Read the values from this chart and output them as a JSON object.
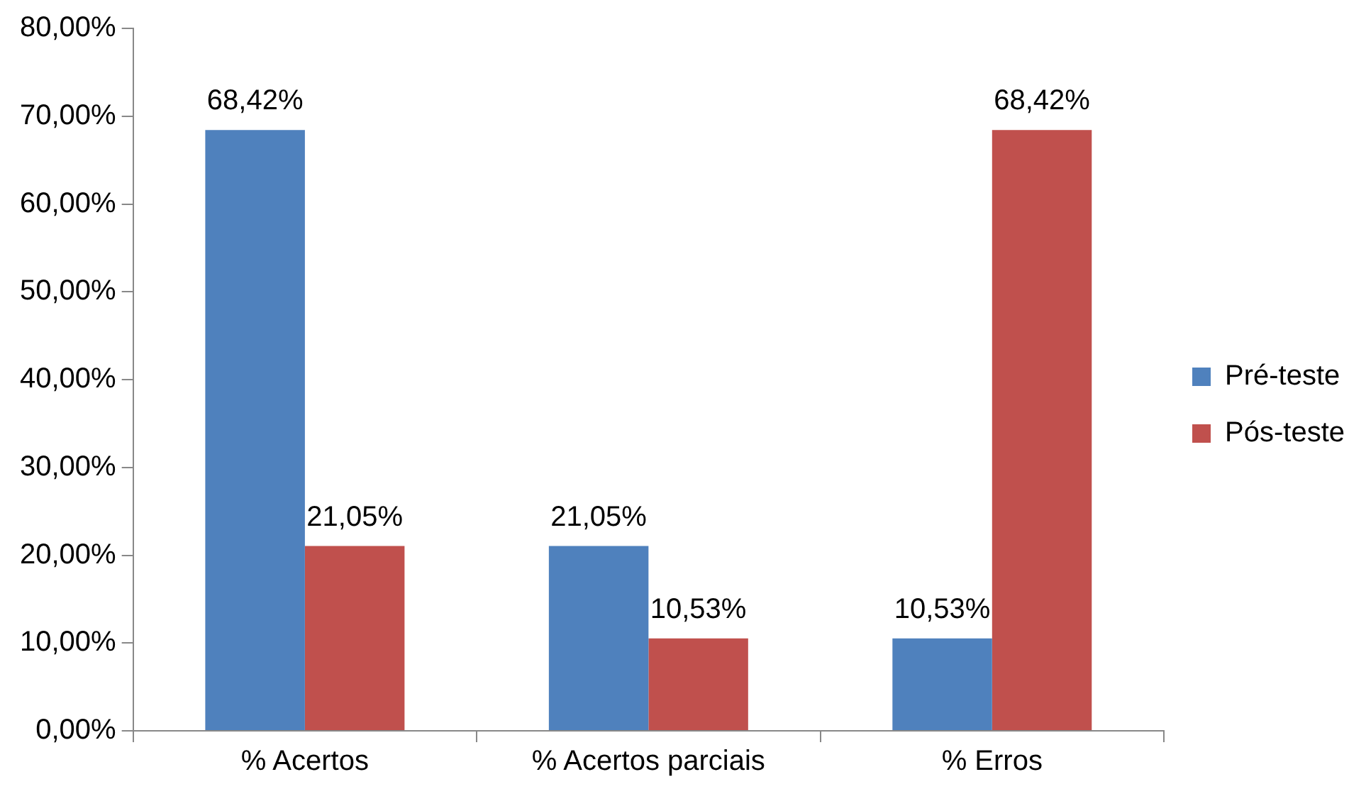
{
  "chart_data": {
    "type": "bar",
    "categories": [
      "% Acertos",
      "% Acertos parciais",
      "% Erros"
    ],
    "series": [
      {
        "name": "Pré-teste",
        "color": "#4f81bd",
        "values": [
          68.42,
          21.05,
          10.53
        ],
        "value_labels": [
          "68,42%",
          "21,05%",
          "10,53%"
        ]
      },
      {
        "name": "Pós-teste",
        "color": "#c0504d",
        "values": [
          21.05,
          10.53,
          68.42
        ],
        "value_labels": [
          "21,05%",
          "10,53%",
          "68,42%"
        ]
      }
    ],
    "ylim": [
      0,
      80
    ],
    "yticks": [
      {
        "value": 0,
        "label": "0,00%"
      },
      {
        "value": 10,
        "label": "10,00%"
      },
      {
        "value": 20,
        "label": "20,00%"
      },
      {
        "value": 30,
        "label": "30,00%"
      },
      {
        "value": 40,
        "label": "40,00%"
      },
      {
        "value": 50,
        "label": "50,00%"
      },
      {
        "value": 60,
        "label": "60,00%"
      },
      {
        "value": 70,
        "label": "70,00%"
      },
      {
        "value": 80,
        "label": "80,00%"
      }
    ],
    "grid": false,
    "legend": "right"
  }
}
